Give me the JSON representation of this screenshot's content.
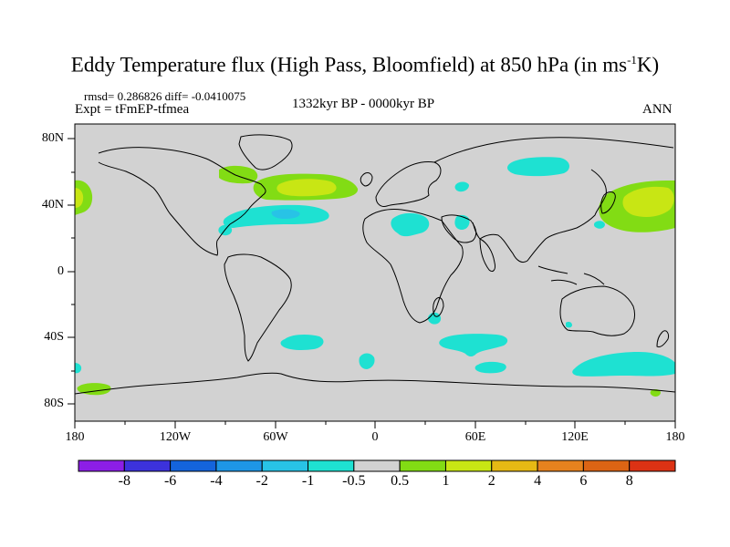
{
  "title": {
    "main": "Eddy Temperature flux (High Pass, Bloomfield) at 850 hPa (in ms",
    "sup": "-1",
    "end": "K)"
  },
  "stats": "rmsd= 0.286826  diff= -0.0410075",
  "experiment": "Expt = tFmEP-tfmea",
  "period": "1332kyr BP - 0000kyr BP",
  "season": "ANN",
  "axes": {
    "lat_labels": [
      "80N",
      "40N",
      "0",
      "40S",
      "80S"
    ],
    "lon_labels": [
      "180",
      "120W",
      "60W",
      "0",
      "60E",
      "120E",
      "180"
    ]
  },
  "colorbar": {
    "labels": [
      "-8",
      "-6",
      "-4",
      "-2",
      "-1",
      "-0.5",
      "0.5",
      "1",
      "2",
      "4",
      "6",
      "8"
    ],
    "colors": [
      "#8c1ee6",
      "#3c32dc",
      "#1464dc",
      "#1e96e6",
      "#28c3e6",
      "#1ee1d2",
      "#d2d2d2",
      "#82dc14",
      "#c8e614",
      "#e6b914",
      "#e6821e",
      "#dc6414",
      "#dc3214"
    ]
  },
  "map": {
    "background_color": "#d2d2d2",
    "coastline_color": "#000000"
  }
}
